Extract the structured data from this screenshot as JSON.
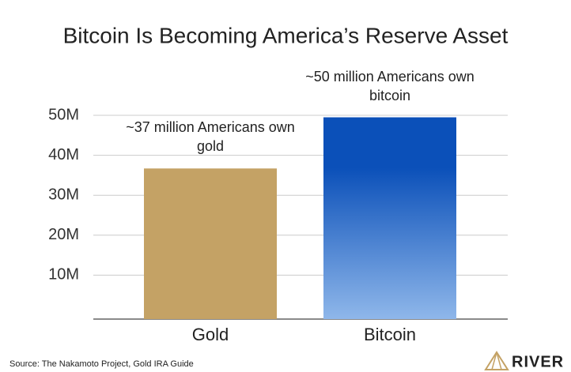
{
  "chart_data": {
    "type": "bar",
    "title": "Bitcoin Is Becoming America’s Reserve Asset",
    "categories": [
      "Gold",
      "Bitcoin"
    ],
    "values": [
      36700000,
      49500000
    ],
    "value_labels": [
      "~37 million Americans own gold",
      "~50 million Americans own bitcoin"
    ],
    "colors": [
      "#c4a265",
      "#0b50b9"
    ],
    "ylim": [
      0,
      50000000
    ],
    "yticks": [
      {
        "value": 10000000,
        "label": "10M"
      },
      {
        "value": 20000000,
        "label": "20M"
      },
      {
        "value": 30000000,
        "label": "30M"
      },
      {
        "value": 40000000,
        "label": "40M"
      },
      {
        "value": 50000000,
        "label": "50M"
      }
    ],
    "grid": true,
    "source": "Source: The Nakamoto Project, Gold IRA Guide",
    "brand": "RIVER"
  }
}
